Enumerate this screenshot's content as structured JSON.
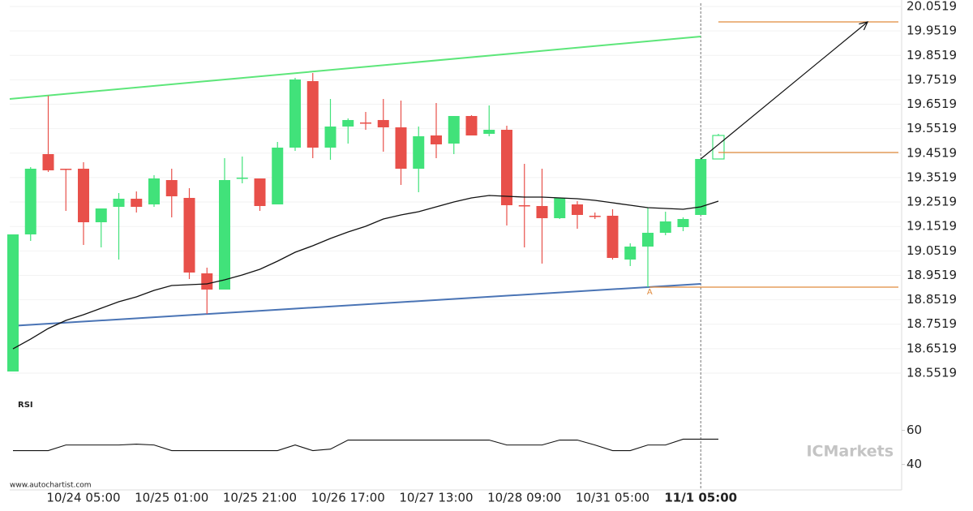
{
  "chart_data": [
    {
      "type": "candlestick",
      "categories": [
        null,
        null,
        null,
        null,
        "10/24 05:00",
        null,
        null,
        null,
        null,
        "10/25 01:00",
        null,
        null,
        null,
        null,
        "10/25 21:00",
        null,
        null,
        null,
        null,
        "10/26 17:00",
        null,
        null,
        null,
        null,
        "10/27 13:00",
        null,
        null,
        null,
        null,
        "10/28 09:00",
        null,
        null,
        null,
        null,
        "10/31 05:00",
        null,
        null,
        null,
        null,
        "11/1 05:00",
        null
      ],
      "open": [
        18.5585,
        19.1194,
        19.4479,
        19.3881,
        19.3881,
        19.1691,
        19.2321,
        19.2653,
        19.2421,
        19.3417,
        19.2687,
        18.96,
        18.8937,
        19.3483,
        19.3483,
        19.2421,
        19.4744,
        19.7465,
        19.4744,
        19.5607,
        19.5773,
        19.5873,
        19.5574,
        19.3881,
        19.5242,
        19.491,
        19.6038,
        19.5308,
        19.5474,
        19.2388,
        19.2355,
        19.1857,
        19.2421,
        19.1957,
        19.1957,
        19.0165,
        19.0696,
        19.126,
        19.1492,
        19.199,
        19.428
      ],
      "high": [
        19.1194,
        19.3948,
        19.6868,
        19.3881,
        19.4147,
        19.2255,
        19.2886,
        19.2952,
        19.3616,
        19.3881,
        19.3085,
        18.9833,
        19.4313,
        19.4379,
        19.3483,
        19.4977,
        19.7598,
        19.7797,
        19.6735,
        19.5939,
        19.6204,
        19.6735,
        19.6669,
        19.5607,
        19.6569,
        19.6038,
        19.6071,
        19.647,
        19.564,
        19.4081,
        19.3881,
        19.2687,
        19.2554,
        19.2089,
        19.2222,
        19.0828,
        19.2288,
        19.2122,
        19.189,
        19.428,
        19.5308
      ],
      "low": [
        18.5585,
        19.0928,
        19.3749,
        19.2155,
        19.0762,
        19.0662,
        19.0165,
        19.2089,
        19.2321,
        19.189,
        18.9368,
        18.7941,
        18.8937,
        19.3284,
        19.2155,
        19.2421,
        19.4611,
        19.4313,
        19.4246,
        19.491,
        19.5474,
        19.4578,
        19.3218,
        19.2919,
        19.4313,
        19.4479,
        19.5242,
        19.5209,
        19.1558,
        19.0662,
        19.0,
        19.1824,
        19.1426,
        19.1824,
        19.0165,
        18.99,
        18.9036,
        19.116,
        19.1326,
        19.199,
        19.428
      ],
      "close": [
        19.1194,
        19.3881,
        19.3815,
        19.3848,
        19.1691,
        19.2255,
        19.2653,
        19.2321,
        19.3483,
        19.2753,
        18.9634,
        18.8937,
        19.3417,
        19.3517,
        19.2355,
        19.4744,
        19.7532,
        19.4744,
        19.5607,
        19.5873,
        19.574,
        19.5574,
        19.3881,
        19.5209,
        19.4877,
        19.6038,
        19.5242,
        19.5474,
        19.2388,
        19.2355,
        19.1857,
        19.2687,
        19.199,
        19.1923,
        19.0231,
        19.0696,
        19.126,
        19.1724,
        19.1824,
        19.428,
        19.5242
      ],
      "up_color": "#41e27a",
      "down_color": "#e8504a",
      "moving_average": [
        18.6514,
        18.6912,
        18.7344,
        18.7676,
        18.7908,
        18.8173,
        18.8439,
        18.8638,
        18.8904,
        18.9103,
        18.9136,
        18.9169,
        18.9335,
        18.9534,
        18.9766,
        19.0098,
        19.0463,
        19.0729,
        19.1027,
        19.1293,
        19.1525,
        19.1824,
        19.199,
        19.2122,
        19.2321,
        19.252,
        19.2687,
        19.2786,
        19.2753,
        19.272,
        19.272,
        19.2687,
        19.2653,
        19.2587,
        19.2487,
        19.2388,
        19.2288,
        19.2255,
        19.2222,
        19.2321,
        19.2554
      ],
      "moving_average_color": "#111111",
      "resistance_line": [
        19.6735,
        19.9291
      ],
      "resistance_color": "#5de67a",
      "support_line": [
        18.7443,
        18.9169
      ],
      "support_color": "#4a74b5",
      "levels": [
        19.9888,
        19.4545,
        18.9036
      ],
      "level_color": "#e08a3c",
      "level_label": "A",
      "ylim": [
        18.4855,
        20.0784
      ],
      "yticks": [
        20.0519,
        19.9519,
        19.8519,
        19.7519,
        19.6519,
        19.5519,
        19.4519,
        19.3519,
        19.2519,
        19.1519,
        19.0519,
        18.9519,
        18.8519,
        18.7519,
        18.6519,
        18.5519
      ],
      "grid": true,
      "source": "www.autochartist.com",
      "logo": "ICMarkets"
    },
    {
      "type": "line",
      "title": "RSI",
      "values": [
        48.1,
        48.1,
        48.1,
        51.4,
        51.4,
        51.4,
        51.4,
        51.9,
        51.4,
        48.1,
        48.1,
        48.1,
        48.1,
        48.1,
        48.1,
        48.1,
        51.4,
        48.1,
        49.0,
        54.3,
        54.3,
        54.3,
        54.3,
        54.3,
        54.3,
        54.3,
        54.3,
        54.3,
        51.4,
        51.4,
        51.4,
        54.3,
        54.3,
        51.4,
        48.1,
        48.1,
        51.4,
        51.4,
        54.8,
        54.8,
        54.8
      ],
      "color": "#111111",
      "ylim": [
        27,
        84
      ],
      "yticks": [
        40,
        60
      ]
    }
  ]
}
